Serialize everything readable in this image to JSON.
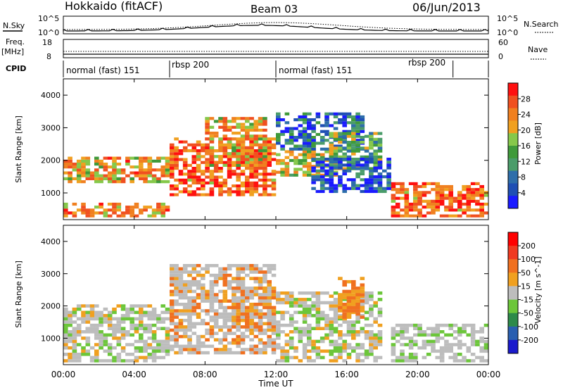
{
  "header": {
    "station": "Hokkaido (fitACF)",
    "beam": "Beam 03",
    "date": "06/Jun/2013"
  },
  "panel_labels": {
    "nsky": "N.Sky",
    "nsky_ticks": [
      "10^5",
      "10^0"
    ],
    "nsearch": "N.Search",
    "nsearch_ticks": [
      "10^5",
      "10^0"
    ],
    "freq_top": "Freq.",
    "freq_unit": "[MHz]",
    "freq_ticks": [
      "18",
      "8"
    ],
    "nave": "Nave",
    "nave_ticks": [
      "60",
      "0"
    ],
    "cpid": "CPID"
  },
  "cpid_segments": [
    {
      "label": "normal (fast) 151",
      "start": 0
    },
    {
      "label": "rbsp 200",
      "start": 6
    },
    {
      "label": "normal (fast) 151",
      "start": 12
    },
    {
      "label": "rbsp 200",
      "start": 22
    }
  ],
  "colors": {
    "power_scale": [
      "#1a1aff",
      "#1f4fb4",
      "#2e6eaa",
      "#4a9c6a",
      "#3f9a3a",
      "#86c84a",
      "#f0a020",
      "#f08020",
      "#f05020",
      "#ff1010"
    ],
    "velocity_scale": [
      "#1a1acc",
      "#2a5fb0",
      "#2d8a4a",
      "#6cc63a",
      "#bdbdbd",
      "#f0a020",
      "#f07020",
      "#f03a20",
      "#ff0000"
    ]
  },
  "chart_data": [
    {
      "type": "heatmap",
      "title": "",
      "xlabel": "Time UT",
      "ylabel": "Slant Range [km]",
      "x_ticks": [
        "00:00",
        "04:00",
        "08:00",
        "12:00",
        "16:00",
        "20:00",
        "00:00"
      ],
      "xlim": [
        0,
        24
      ],
      "y_ticks": [
        "1000",
        "2000",
        "3000",
        "4000"
      ],
      "ylim": [
        180,
        4500
      ],
      "colorbar": {
        "label": "Power [dB]",
        "ticks": [
          "4",
          "8",
          "12",
          "16",
          "20",
          "24",
          "28"
        ],
        "range": [
          0,
          30
        ]
      }
    },
    {
      "type": "heatmap",
      "title": "",
      "xlabel": "Time UT",
      "ylabel": "Slant Range [km]",
      "x_ticks": [
        "00:00",
        "04:00",
        "08:00",
        "12:00",
        "16:00",
        "20:00",
        "00:00"
      ],
      "xlim": [
        0,
        24
      ],
      "y_ticks": [
        "1000",
        "2000",
        "3000",
        "4000"
      ],
      "ylim": [
        180,
        4500
      ],
      "colorbar": {
        "label": "Velocity [m s^-1]",
        "ticks": [
          "200",
          "100",
          "50",
          "15",
          "-15",
          "-50",
          "-100",
          "-200"
        ],
        "range": [
          -250,
          250
        ]
      }
    }
  ],
  "axis": {
    "time_label": "Time UT"
  }
}
